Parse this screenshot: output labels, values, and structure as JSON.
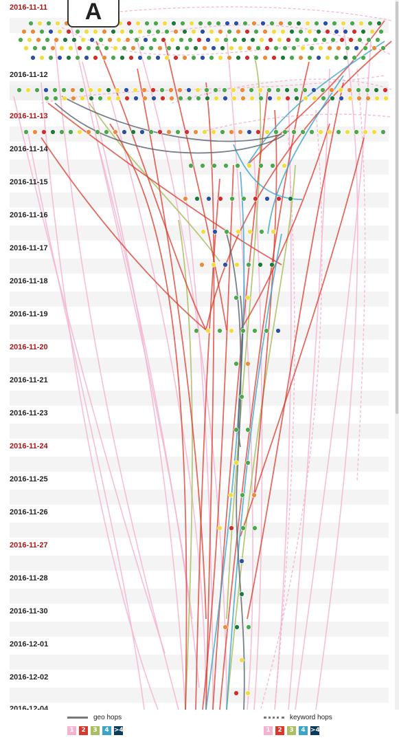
{
  "panel_label": "A",
  "colors": {
    "date_label": "#222222",
    "date_label_weekend": "#a31515",
    "row_band": "#ececec",
    "hop_1": "#f4b3d0",
    "hop_2": "#d9382b",
    "hop_3": "#a9bf62",
    "hop_4": "#3aa4c9",
    "hop_more": "#0b3a5a",
    "geo_line": "#777777",
    "dot_green": "#4aa84a",
    "dot_yellow": "#f2dd3c",
    "dot_orange": "#ec8a3a",
    "dot_red": "#d42b2b",
    "dot_blue": "#2a4fa8",
    "dot_darkgreen": "#1e7a3a"
  },
  "dates": [
    {
      "label": "2016-11-11",
      "weekend": true
    },
    {
      "label": "2016-11-12",
      "weekend": false
    },
    {
      "label": "2016-11-13",
      "weekend": true
    },
    {
      "label": "2016-11-14",
      "weekend": false
    },
    {
      "label": "2016-11-15",
      "weekend": false
    },
    {
      "label": "2016-11-16",
      "weekend": false
    },
    {
      "label": "2016-11-17",
      "weekend": false
    },
    {
      "label": "2016-11-18",
      "weekend": false
    },
    {
      "label": "2016-11-19",
      "weekend": false
    },
    {
      "label": "2016-11-20",
      "weekend": true
    },
    {
      "label": "2016-11-21",
      "weekend": false
    },
    {
      "label": "2016-11-23",
      "weekend": false
    },
    {
      "label": "2016-11-24",
      "weekend": true
    },
    {
      "label": "2016-11-25",
      "weekend": false
    },
    {
      "label": "2016-11-26",
      "weekend": false
    },
    {
      "label": "2016-11-27",
      "weekend": true
    },
    {
      "label": "2016-11-28",
      "weekend": false
    },
    {
      "label": "2016-11-30",
      "weekend": false
    },
    {
      "label": "2016-12-01",
      "weekend": false
    },
    {
      "label": "2016-12-02",
      "weekend": false
    },
    {
      "label": "2016-12-04",
      "weekend": false
    }
  ],
  "legend": {
    "geo_label": "geo hops",
    "keyword_label": "keyword hops",
    "swatches": [
      {
        "label": "1",
        "color": "#f4b3d0"
      },
      {
        "label": "2",
        "color": "#d9382b"
      },
      {
        "label": "3",
        "color": "#a9bf62"
      },
      {
        "label": "4",
        "color": "#3aa4c9"
      },
      {
        "label": ">4",
        "color": "#0b3a5a"
      }
    ]
  }
}
